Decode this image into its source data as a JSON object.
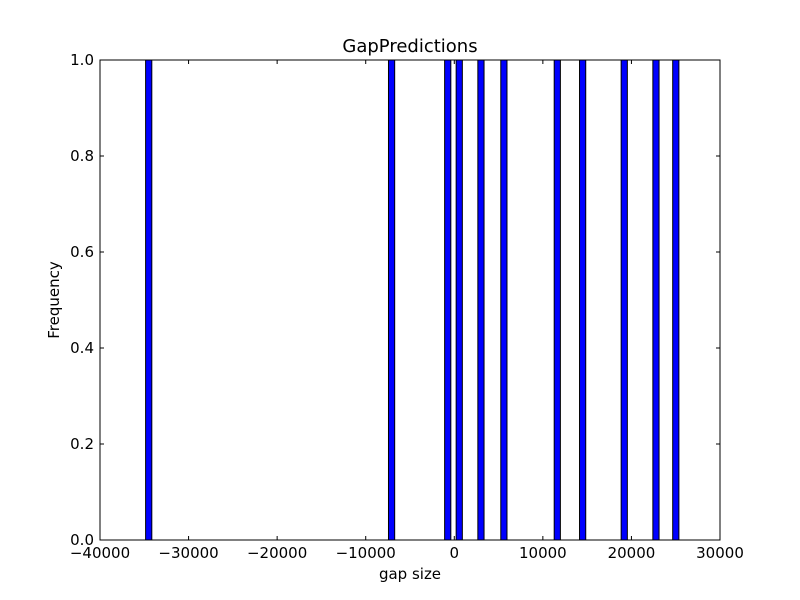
{
  "chart_data": {
    "type": "bar",
    "title": "GapPredictions",
    "xlabel": "gap size",
    "ylabel": "Frequency",
    "xlim": [
      -40000,
      30000
    ],
    "ylim": [
      0,
      1
    ],
    "x_ticks": [
      -40000,
      -30000,
      -20000,
      -10000,
      0,
      10000,
      20000,
      30000
    ],
    "x_tick_labels": [
      "−40000",
      "−30000",
      "−20000",
      "−10000",
      "0",
      "10000",
      "20000",
      "30000"
    ],
    "y_ticks": [
      0.0,
      0.2,
      0.4,
      0.6,
      0.8,
      1.0
    ],
    "y_tick_labels": [
      "0.0",
      "0.2",
      "0.4",
      "0.6",
      "0.8",
      "1.0"
    ],
    "bar_width": 700,
    "bar_color": "#0000ff",
    "edge_color": "#000000",
    "bars": [
      {
        "x": -34850,
        "value": 1
      },
      {
        "x": -7430,
        "value": 1
      },
      {
        "x": -1090,
        "value": 1
      },
      {
        "x": 210,
        "value": 1
      },
      {
        "x": 2660,
        "value": 1
      },
      {
        "x": 5250,
        "value": 1
      },
      {
        "x": 11280,
        "value": 1
      },
      {
        "x": 14140,
        "value": 1
      },
      {
        "x": 18840,
        "value": 1
      },
      {
        "x": 22420,
        "value": 1
      },
      {
        "x": 24660,
        "value": 1
      }
    ],
    "grid": false,
    "legend": "none"
  }
}
